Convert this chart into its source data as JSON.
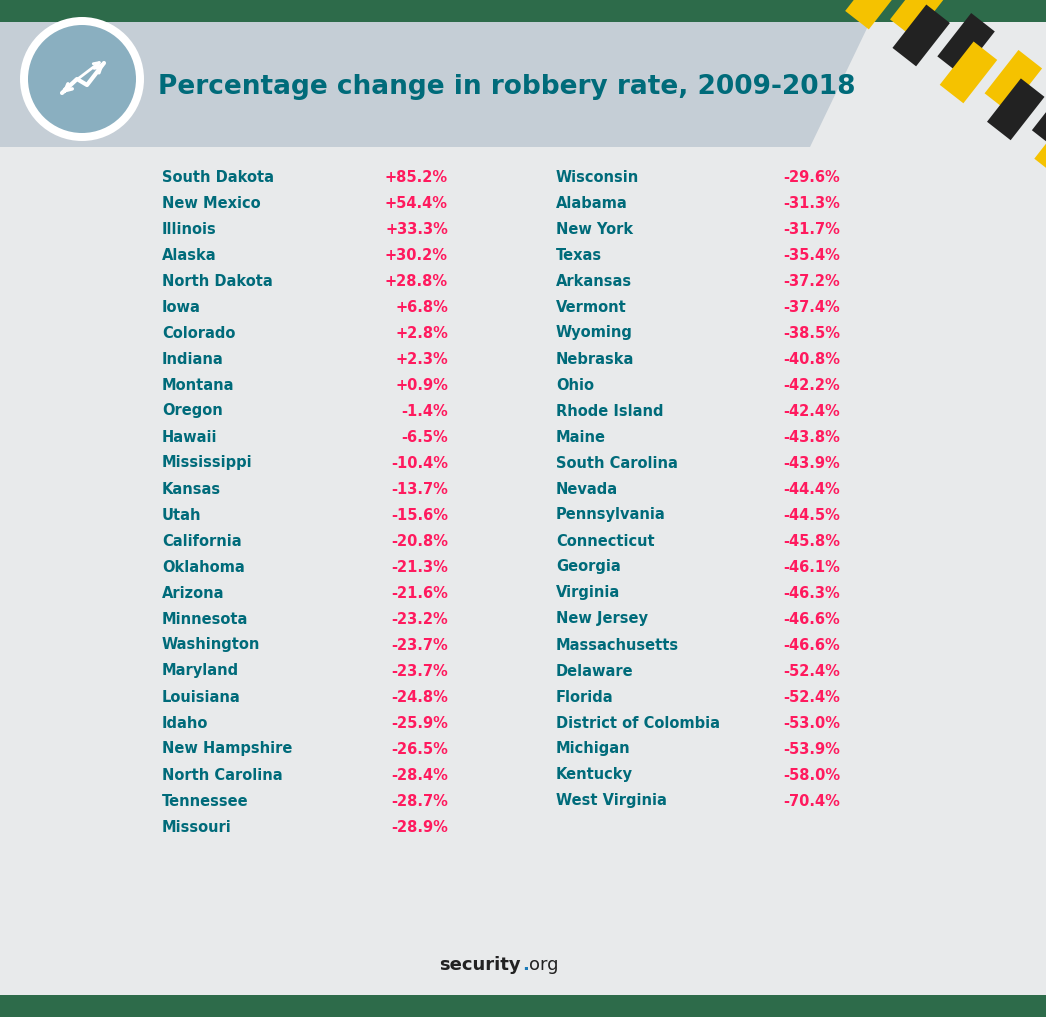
{
  "title": "Percentage change in robbery rate, 2009-2018",
  "bg_color": "#e8eaeb",
  "header_bg": "#b8c8d2",
  "state_color": "#006b7a",
  "value_color": "#ff1a5e",
  "title_color": "#006b7a",
  "left_states": [
    "South Dakota",
    "New Mexico",
    "Illinois",
    "Alaska",
    "North Dakota",
    "Iowa",
    "Colorado",
    "Indiana",
    "Montana",
    "Oregon",
    "Hawaii",
    "Mississippi",
    "Kansas",
    "Utah",
    "California",
    "Oklahoma",
    "Arizona",
    "Minnesota",
    "Washington",
    "Maryland",
    "Louisiana",
    "Idaho",
    "New Hampshire",
    "North Carolina",
    "Tennessee",
    "Missouri"
  ],
  "left_values": [
    "+85.2%",
    "+54.4%",
    "+33.3%",
    "+30.2%",
    "+28.8%",
    "+6.8%",
    "+2.8%",
    "+2.3%",
    "+0.9%",
    "-1.4%",
    "-6.5%",
    "-10.4%",
    "-13.7%",
    "-15.6%",
    "-20.8%",
    "-21.3%",
    "-21.6%",
    "-23.2%",
    "-23.7%",
    "-23.7%",
    "-24.8%",
    "-25.9%",
    "-26.5%",
    "-28.4%",
    "-28.7%",
    "-28.9%"
  ],
  "right_states": [
    "Wisconsin",
    "Alabama",
    "New York",
    "Texas",
    "Arkansas",
    "Vermont",
    "Wyoming",
    "Nebraska",
    "Ohio",
    "Rhode Island",
    "Maine",
    "South Carolina",
    "Nevada",
    "Pennsylvania",
    "Connecticut",
    "Georgia",
    "Virginia",
    "New Jersey",
    "Massachusetts",
    "Delaware",
    "Florida",
    "District of Colombia",
    "Michigan",
    "Kentucky",
    "West Virginia"
  ],
  "right_values": [
    "-29.6%",
    "-31.3%",
    "-31.7%",
    "-35.4%",
    "-37.2%",
    "-37.4%",
    "-38.5%",
    "-40.8%",
    "-42.2%",
    "-42.4%",
    "-43.8%",
    "-43.9%",
    "-44.4%",
    "-44.5%",
    "-45.8%",
    "-46.1%",
    "-46.3%",
    "-46.6%",
    "-46.6%",
    "-52.4%",
    "-52.4%",
    "-53.0%",
    "-53.9%",
    "-58.0%",
    "-70.4%"
  ],
  "stripe_yellow": "#f5c200",
  "stripe_black": "#222222",
  "green_bg": "#2d6b4a",
  "circle_fill": "#8aafc0",
  "circle_edge": "#ffffff",
  "header_gray": "#c5ced6",
  "footer_bold_color": "#222222",
  "footer_dot_color": "#1a7ab8"
}
